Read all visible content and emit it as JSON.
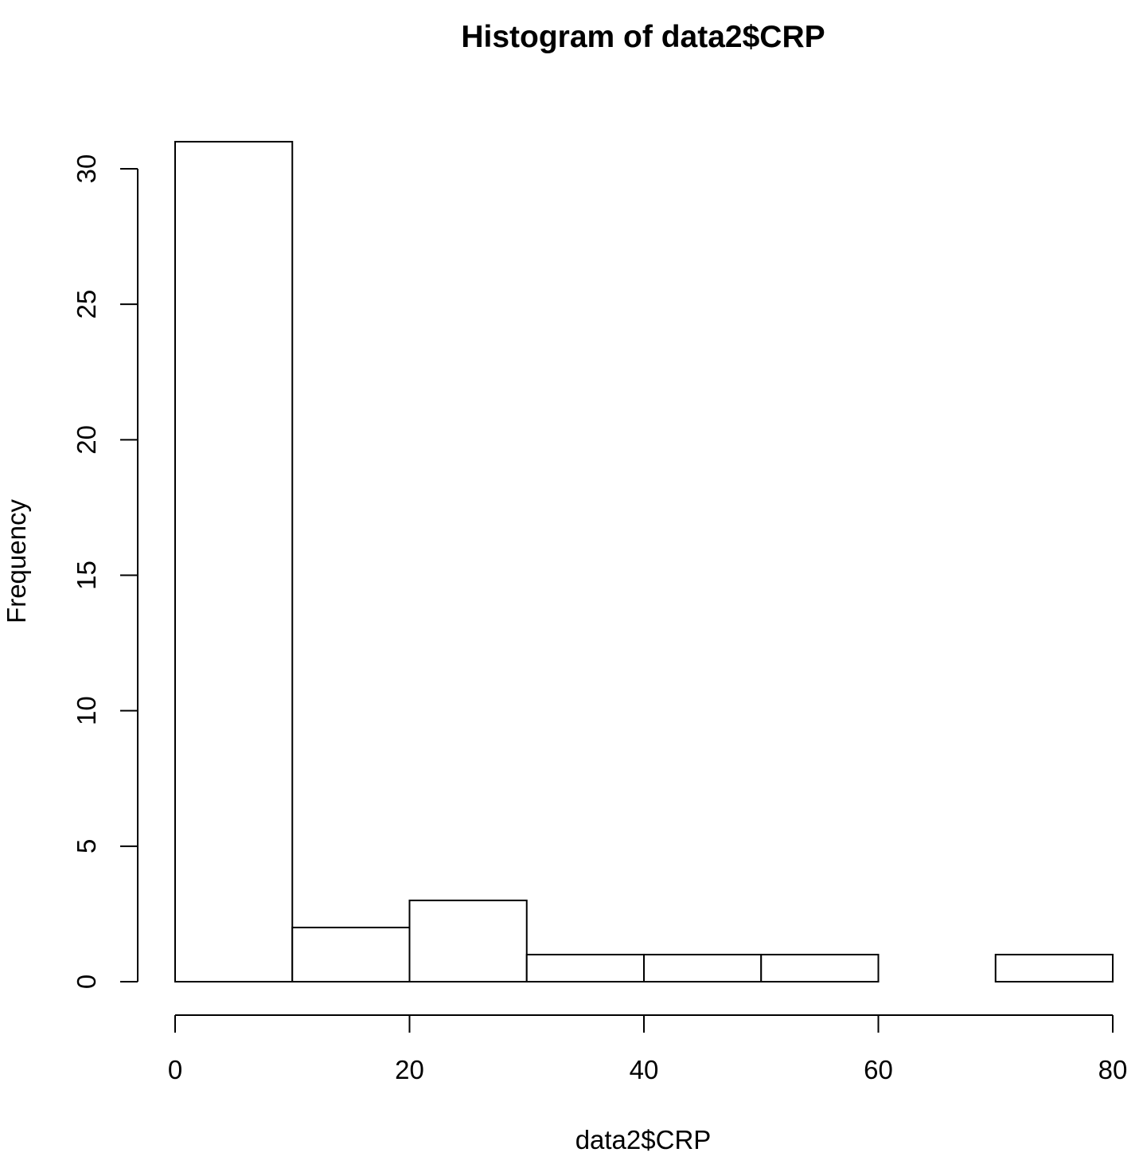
{
  "chart_data": {
    "type": "bar",
    "title": "Histogram of data2$CRP",
    "xlabel": "data2$CRP",
    "ylabel": "Frequency",
    "bins": [
      {
        "start": 0,
        "end": 10,
        "count": 31
      },
      {
        "start": 10,
        "end": 20,
        "count": 2
      },
      {
        "start": 20,
        "end": 30,
        "count": 3
      },
      {
        "start": 30,
        "end": 40,
        "count": 1
      },
      {
        "start": 40,
        "end": 50,
        "count": 1
      },
      {
        "start": 50,
        "end": 60,
        "count": 1
      },
      {
        "start": 60,
        "end": 70,
        "count": 0
      },
      {
        "start": 70,
        "end": 80,
        "count": 1
      }
    ],
    "xlim": [
      0,
      80
    ],
    "ylim": [
      0,
      30
    ],
    "x_ticks": [
      "0",
      "20",
      "40",
      "60",
      "80"
    ],
    "y_ticks": [
      "0",
      "5",
      "10",
      "15",
      "20",
      "25",
      "30"
    ],
    "grid": false,
    "legend": "none",
    "colors": {
      "bar_fill": "#ffffff",
      "bar_stroke": "#000000",
      "axis": "#000000"
    }
  }
}
